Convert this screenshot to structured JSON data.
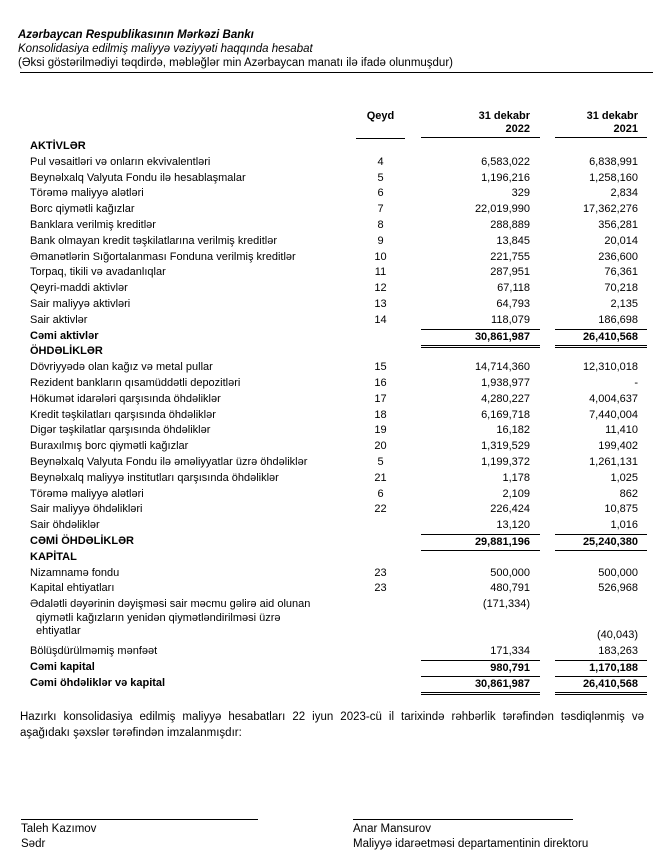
{
  "header": {
    "title": "Azərbaycan Respublikasının Mərkəzi Bankı",
    "subtitle": "Konsolidasiya edilmiş maliyyə vəziyyəti haqqında hesabat",
    "note": "(Əksi göstərilmədiyi təqdirdə, məbləğlər min Azərbaycan manatı ilə ifadə olunmuşdur)"
  },
  "columns": {
    "note": "Qeyd",
    "y2022_line1": "31 dekabr",
    "y2022_line2": "2022",
    "y2021_line1": "31 dekabr",
    "y2021_line2": "2021"
  },
  "rows": [
    {
      "type": "section",
      "label": "AKTİVLƏR"
    },
    {
      "type": "item",
      "label": "Pul vəsaitləri və onların ekvivalentləri",
      "note": "4",
      "y2022": "6,583,022",
      "y2021": "6,838,991"
    },
    {
      "type": "item",
      "label": "Beynəlxalq Valyuta Fondu ilə hesablaşmalar",
      "note": "5",
      "y2022": "1,196,216",
      "y2021": "1,258,160"
    },
    {
      "type": "item",
      "label": "Törəmə maliyyə alətləri",
      "note": "6",
      "y2022": "329",
      "y2021": "2,834"
    },
    {
      "type": "item",
      "label": "Borc qiymətli kağızlar",
      "note": "7",
      "y2022": "22,019,990",
      "y2021": "17,362,276"
    },
    {
      "type": "item",
      "label": "Banklara verilmiş kreditlər",
      "note": "8",
      "y2022": "288,889",
      "y2021": "356,281"
    },
    {
      "type": "item",
      "label": "Bank olmayan kredit təşkilatlarına verilmiş kreditlər",
      "note": "9",
      "y2022": "13,845",
      "y2021": "20,014"
    },
    {
      "type": "item",
      "label": "Əmanətlərin Sığortalanması Fonduna verilmiş kreditlər",
      "note": "10",
      "y2022": "221,755",
      "y2021": "236,600"
    },
    {
      "type": "item",
      "label": "Torpaq, tikili və avadanlıqlar",
      "note": "11",
      "y2022": "287,951",
      "y2021": "76,361"
    },
    {
      "type": "item",
      "label": "Qeyri-maddi aktivlər",
      "note": "12",
      "y2022": "67,118",
      "y2021": "70,218"
    },
    {
      "type": "item",
      "label": "Sair maliyyə aktivləri",
      "note": "13",
      "y2022": "64,793",
      "y2021": "2,135"
    },
    {
      "type": "item",
      "label": "Sair aktivlər",
      "note": "14",
      "y2022": "118,079",
      "y2021": "186,698"
    },
    {
      "type": "total dbl",
      "label": "Cəmi aktivlər",
      "note": "",
      "y2022": "30,861,987",
      "y2021": "26,410,568"
    },
    {
      "type": "section",
      "label": "ÖHDƏLİKLƏR"
    },
    {
      "type": "item",
      "label": "Dövriyyədə olan kağız və metal pullar",
      "note": "15",
      "y2022": "14,714,360",
      "y2021": "12,310,018"
    },
    {
      "type": "item",
      "label": "Rezident bankların qısamüddətli depozitləri",
      "note": "16",
      "y2022": "1,938,977",
      "y2021": "-"
    },
    {
      "type": "item",
      "label": "Hökumət idarələri qarşısında öhdəliklər",
      "note": "17",
      "y2022": "4,280,227",
      "y2021": "4,004,637"
    },
    {
      "type": "item",
      "label": "Kredit təşkilatları qarşısında öhdəliklər",
      "note": "18",
      "y2022": "6,169,718",
      "y2021": "7,440,004"
    },
    {
      "type": "item",
      "label": "Digər təşkilatlar qarşısında öhdəliklər",
      "note": "19",
      "y2022": "16,182",
      "y2021": "11,410"
    },
    {
      "type": "item",
      "label": "Buraxılmış borc qiymətli kağızlar",
      "note": "20",
      "y2022": "1,319,529",
      "y2021": "199,402"
    },
    {
      "type": "item",
      "label": "Beynəlxalq Valyuta Fondu ilə əməliyyatlar üzrə öhdəliklər",
      "note": "5",
      "y2022": "1,199,372",
      "y2021": "1,261,131"
    },
    {
      "type": "item",
      "label": "Beynəlxalq maliyyə institutları qarşısında öhdəliklər",
      "note": "21",
      "y2022": "1,178",
      "y2021": "1,025"
    },
    {
      "type": "item",
      "label": "Törəmə maliyyə alətləri",
      "note": "6",
      "y2022": "2,109",
      "y2021": "862"
    },
    {
      "type": "item",
      "label": "Sair maliyyə öhdəlikləri",
      "note": "22",
      "y2022": "226,424",
      "y2021": "10,875"
    },
    {
      "type": "item",
      "label": "Sair öhdəliklər",
      "note": "",
      "y2022": "13,120",
      "y2021": "1,016"
    },
    {
      "type": "total sgl",
      "label": "CƏMİ ÖHDƏLİKLƏR",
      "note": "",
      "y2022": "29,881,196",
      "y2021": "25,240,380"
    },
    {
      "type": "section",
      "label": "KAPİTAL"
    },
    {
      "type": "item",
      "label": "Nizamnamə fondu",
      "note": "23",
      "y2022": "500,000",
      "y2021": "500,000"
    },
    {
      "type": "item",
      "label": "Kapital ehtiyatları",
      "note": "23",
      "y2022": "480,791",
      "y2021": "526,968"
    },
    {
      "type": "multi",
      "label_lines": [
        "Ədalətli dəyərinin dəyişməsi sair məcmu gəlirə aid olunan",
        "qiymətli kağızların yenidən qiymətləndirilməsi üzrə",
        "ehtiyatlar"
      ],
      "note": "",
      "y2022": "(171,334)",
      "y2021": "(40,043)"
    },
    {
      "type": "item",
      "label": "Bölüşdürülməmiş mənfəət",
      "note": "",
      "y2022": "171,334",
      "y2021": "183,263"
    },
    {
      "type": "total",
      "label": "Cəmi kapital",
      "note": "",
      "y2022": "980,791",
      "y2021": "1,170,188"
    },
    {
      "type": "total dbl",
      "label": "Cəmi öhdəliklər və kapital",
      "note": "",
      "y2022": "30,861,987",
      "y2021": "26,410,568"
    }
  ],
  "footer": {
    "statement": "Hazırkı konsolidasiya edilmiş maliyyə hesabatları 22 iyun 2023-cü il tarixində rəhbərlik tərəfindən təsdiqlənmiş və aşağıdakı şəxslər tərəfindən imzalanmışdır:",
    "signatory1_name": "Taleh Kazımov",
    "signatory1_title": "Sədr",
    "signatory2_name": "Anar Mansurov",
    "signatory2_title": "Maliyyə idarəetməsi departamentinin direktoru"
  }
}
